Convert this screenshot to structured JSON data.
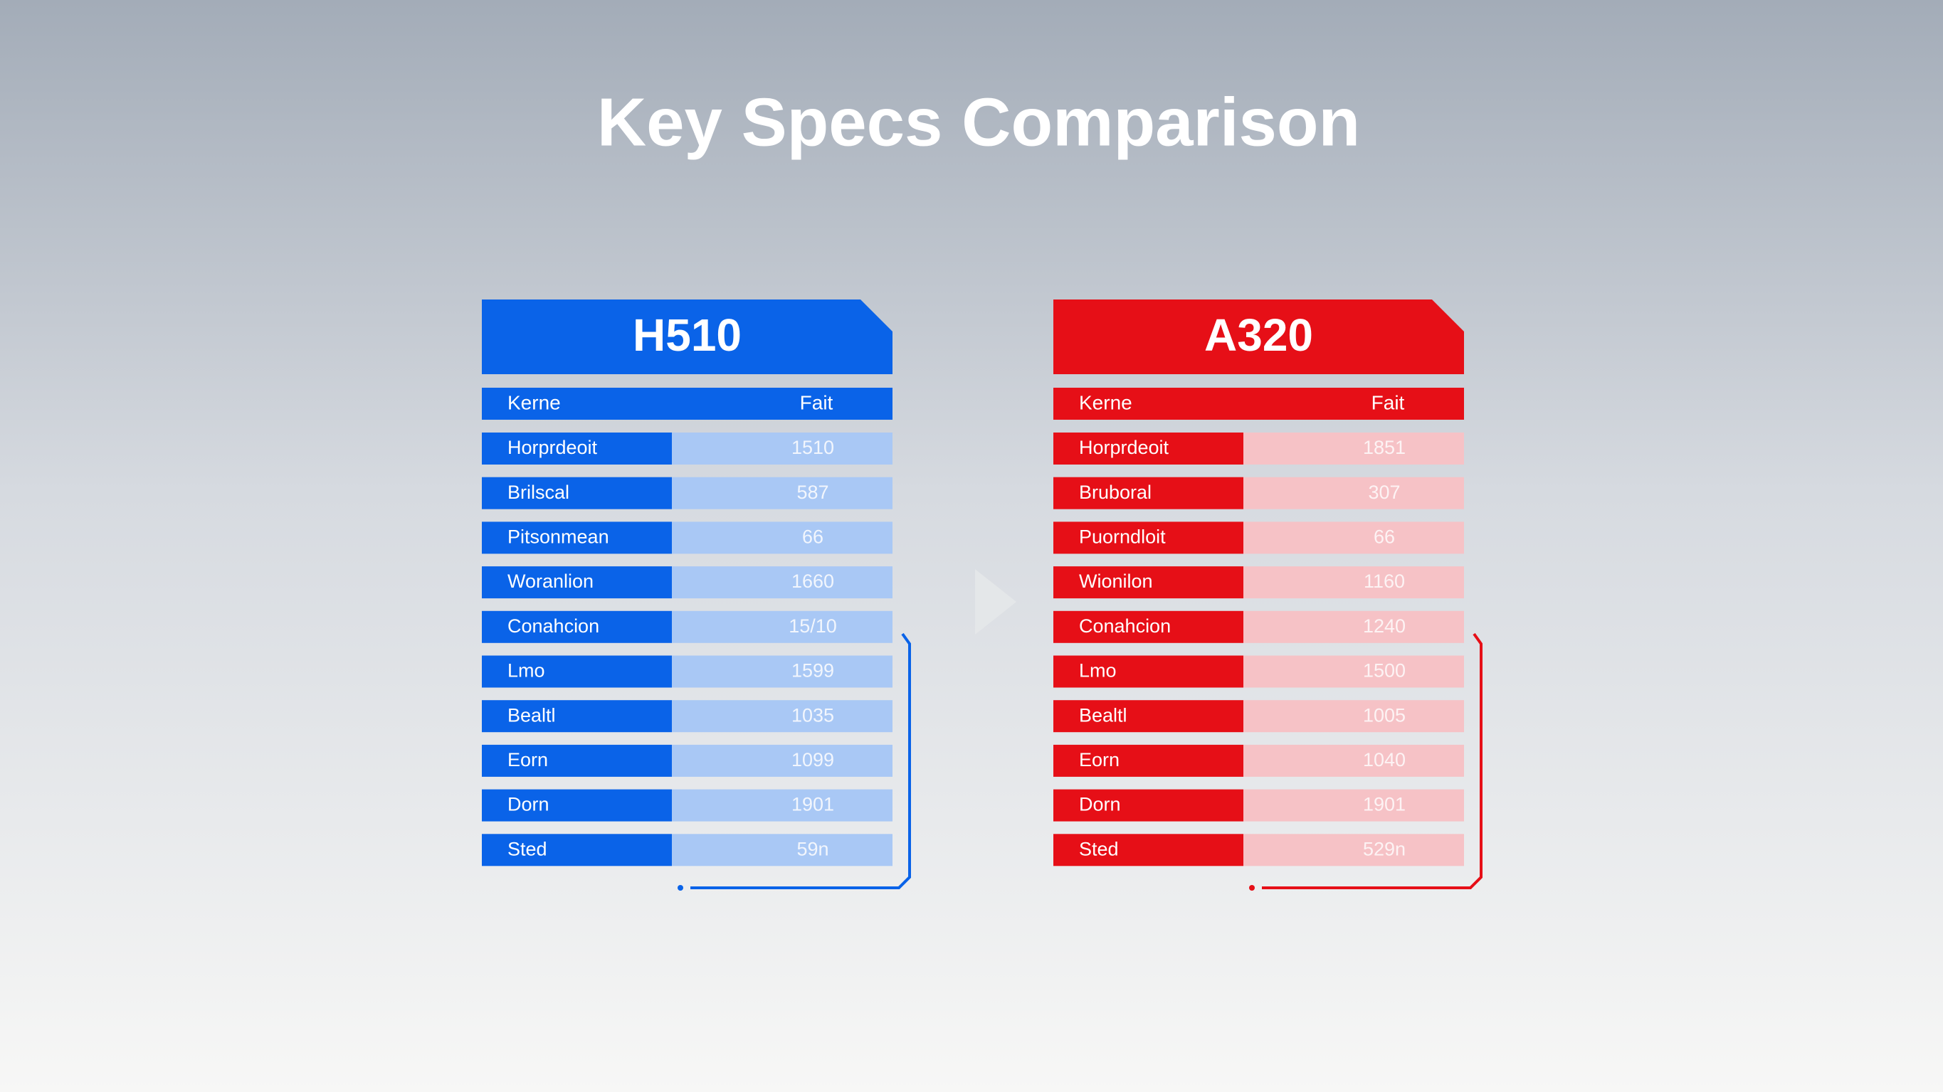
{
  "title": "Key Specs Comparison",
  "tables": [
    {
      "name": "H510",
      "header": [
        "Kerne",
        "Fait"
      ],
      "rows": [
        [
          "Horprdeoit",
          "1510"
        ],
        [
          "Brilscal",
          "587"
        ],
        [
          "Pitsonmean",
          "66"
        ],
        [
          "Woranlion",
          "1660"
        ],
        [
          "Conahcion",
          "15/10"
        ],
        [
          "Lmo",
          "1599"
        ],
        [
          "Bealtl",
          "1035"
        ],
        [
          "Eorn",
          "1099"
        ],
        [
          "Dorn",
          "1901"
        ],
        [
          "Sted",
          "59n"
        ]
      ]
    },
    {
      "name": "A320",
      "header": [
        "Kerne",
        "Fait"
      ],
      "rows": [
        [
          "Horprdeoit",
          "1851"
        ],
        [
          "Bruboral",
          "307"
        ],
        [
          "Puorndloit",
          "66"
        ],
        [
          "Wionilon",
          "1160"
        ],
        [
          "Conahcion",
          "1240"
        ],
        [
          "Lmo",
          "1500"
        ],
        [
          "Bealtl",
          "1005"
        ],
        [
          "Eorn",
          "1040"
        ],
        [
          "Dorn",
          "1901"
        ],
        [
          "Sted",
          "529n"
        ]
      ]
    }
  ]
}
